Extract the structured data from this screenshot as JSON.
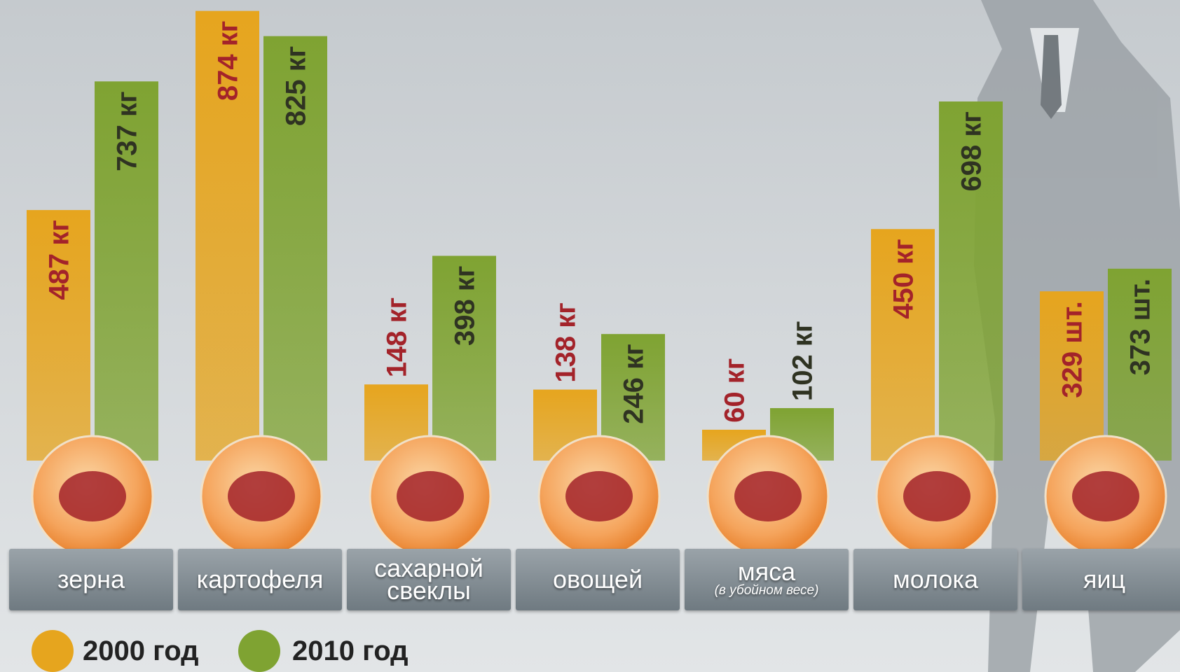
{
  "chart_data": {
    "type": "bar",
    "categories": [
      "зерна",
      "картофеля",
      "сахарной свеклы",
      "овощей",
      "мяса",
      "молока",
      "яиц"
    ],
    "annotation": "(в убойном весе)",
    "series": [
      {
        "name": "2000 год",
        "color": "#e6a51e",
        "values": [
          487,
          874,
          148,
          138,
          60,
          450,
          329
        ],
        "value_labels": [
          "487 кг",
          "874 кг",
          "148 кг",
          "138 кг",
          "60 кг",
          "450 кг",
          "329 шт."
        ]
      },
      {
        "name": "2010 год",
        "color": "#7fa332",
        "values": [
          737,
          825,
          398,
          246,
          102,
          698,
          373
        ],
        "value_labels": [
          "737 кг",
          "825 кг",
          "398 кг",
          "246 кг",
          "102 кг",
          "698 кг",
          "373 шт."
        ]
      }
    ]
  }
}
